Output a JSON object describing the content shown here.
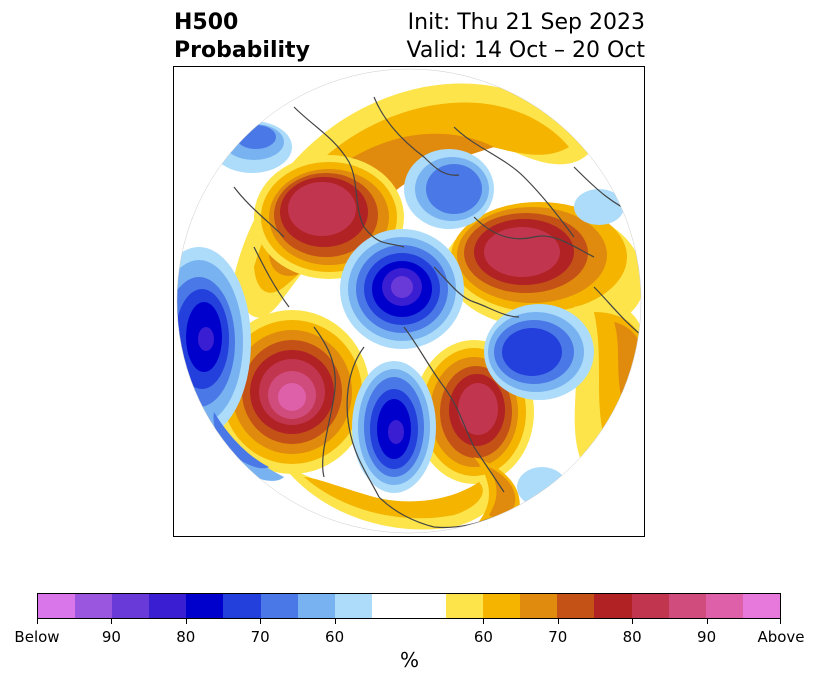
{
  "title": {
    "left_line1": "H500",
    "left_line2": "Probability",
    "right_line1": "Init: Thu 21 Sep 2023",
    "right_line2": "Valid: 14 Oct – 20 Oct"
  },
  "colorbar": {
    "unit": "%",
    "colors": [
      "#d977ea",
      "#9b56e0",
      "#6a3ad8",
      "#3a1ed2",
      "#0000cd",
      "#2340dc",
      "#4a78e6",
      "#78b2f0",
      "#acdcfa",
      "#ffffff",
      "#ffffff",
      "#fde44a",
      "#f4b400",
      "#e08a0e",
      "#c45216",
      "#b02224",
      "#c2354e",
      "#d04c7c",
      "#de60a8",
      "#e779dd"
    ],
    "tick_labels": [
      "Below",
      "90",
      "80",
      "70",
      "60",
      "60",
      "70",
      "80",
      "90",
      "Above"
    ],
    "tick_bins": [
      0,
      2,
      4,
      6,
      8,
      12,
      14,
      16,
      18,
      20
    ]
  },
  "map": {
    "projection": "north-polar-stereographic",
    "anomalies": [
      {
        "sign": "below",
        "level": 75,
        "color": "#0000cd"
      },
      {
        "sign": "above",
        "level": 90,
        "color": "#de60a8"
      }
    ]
  }
}
